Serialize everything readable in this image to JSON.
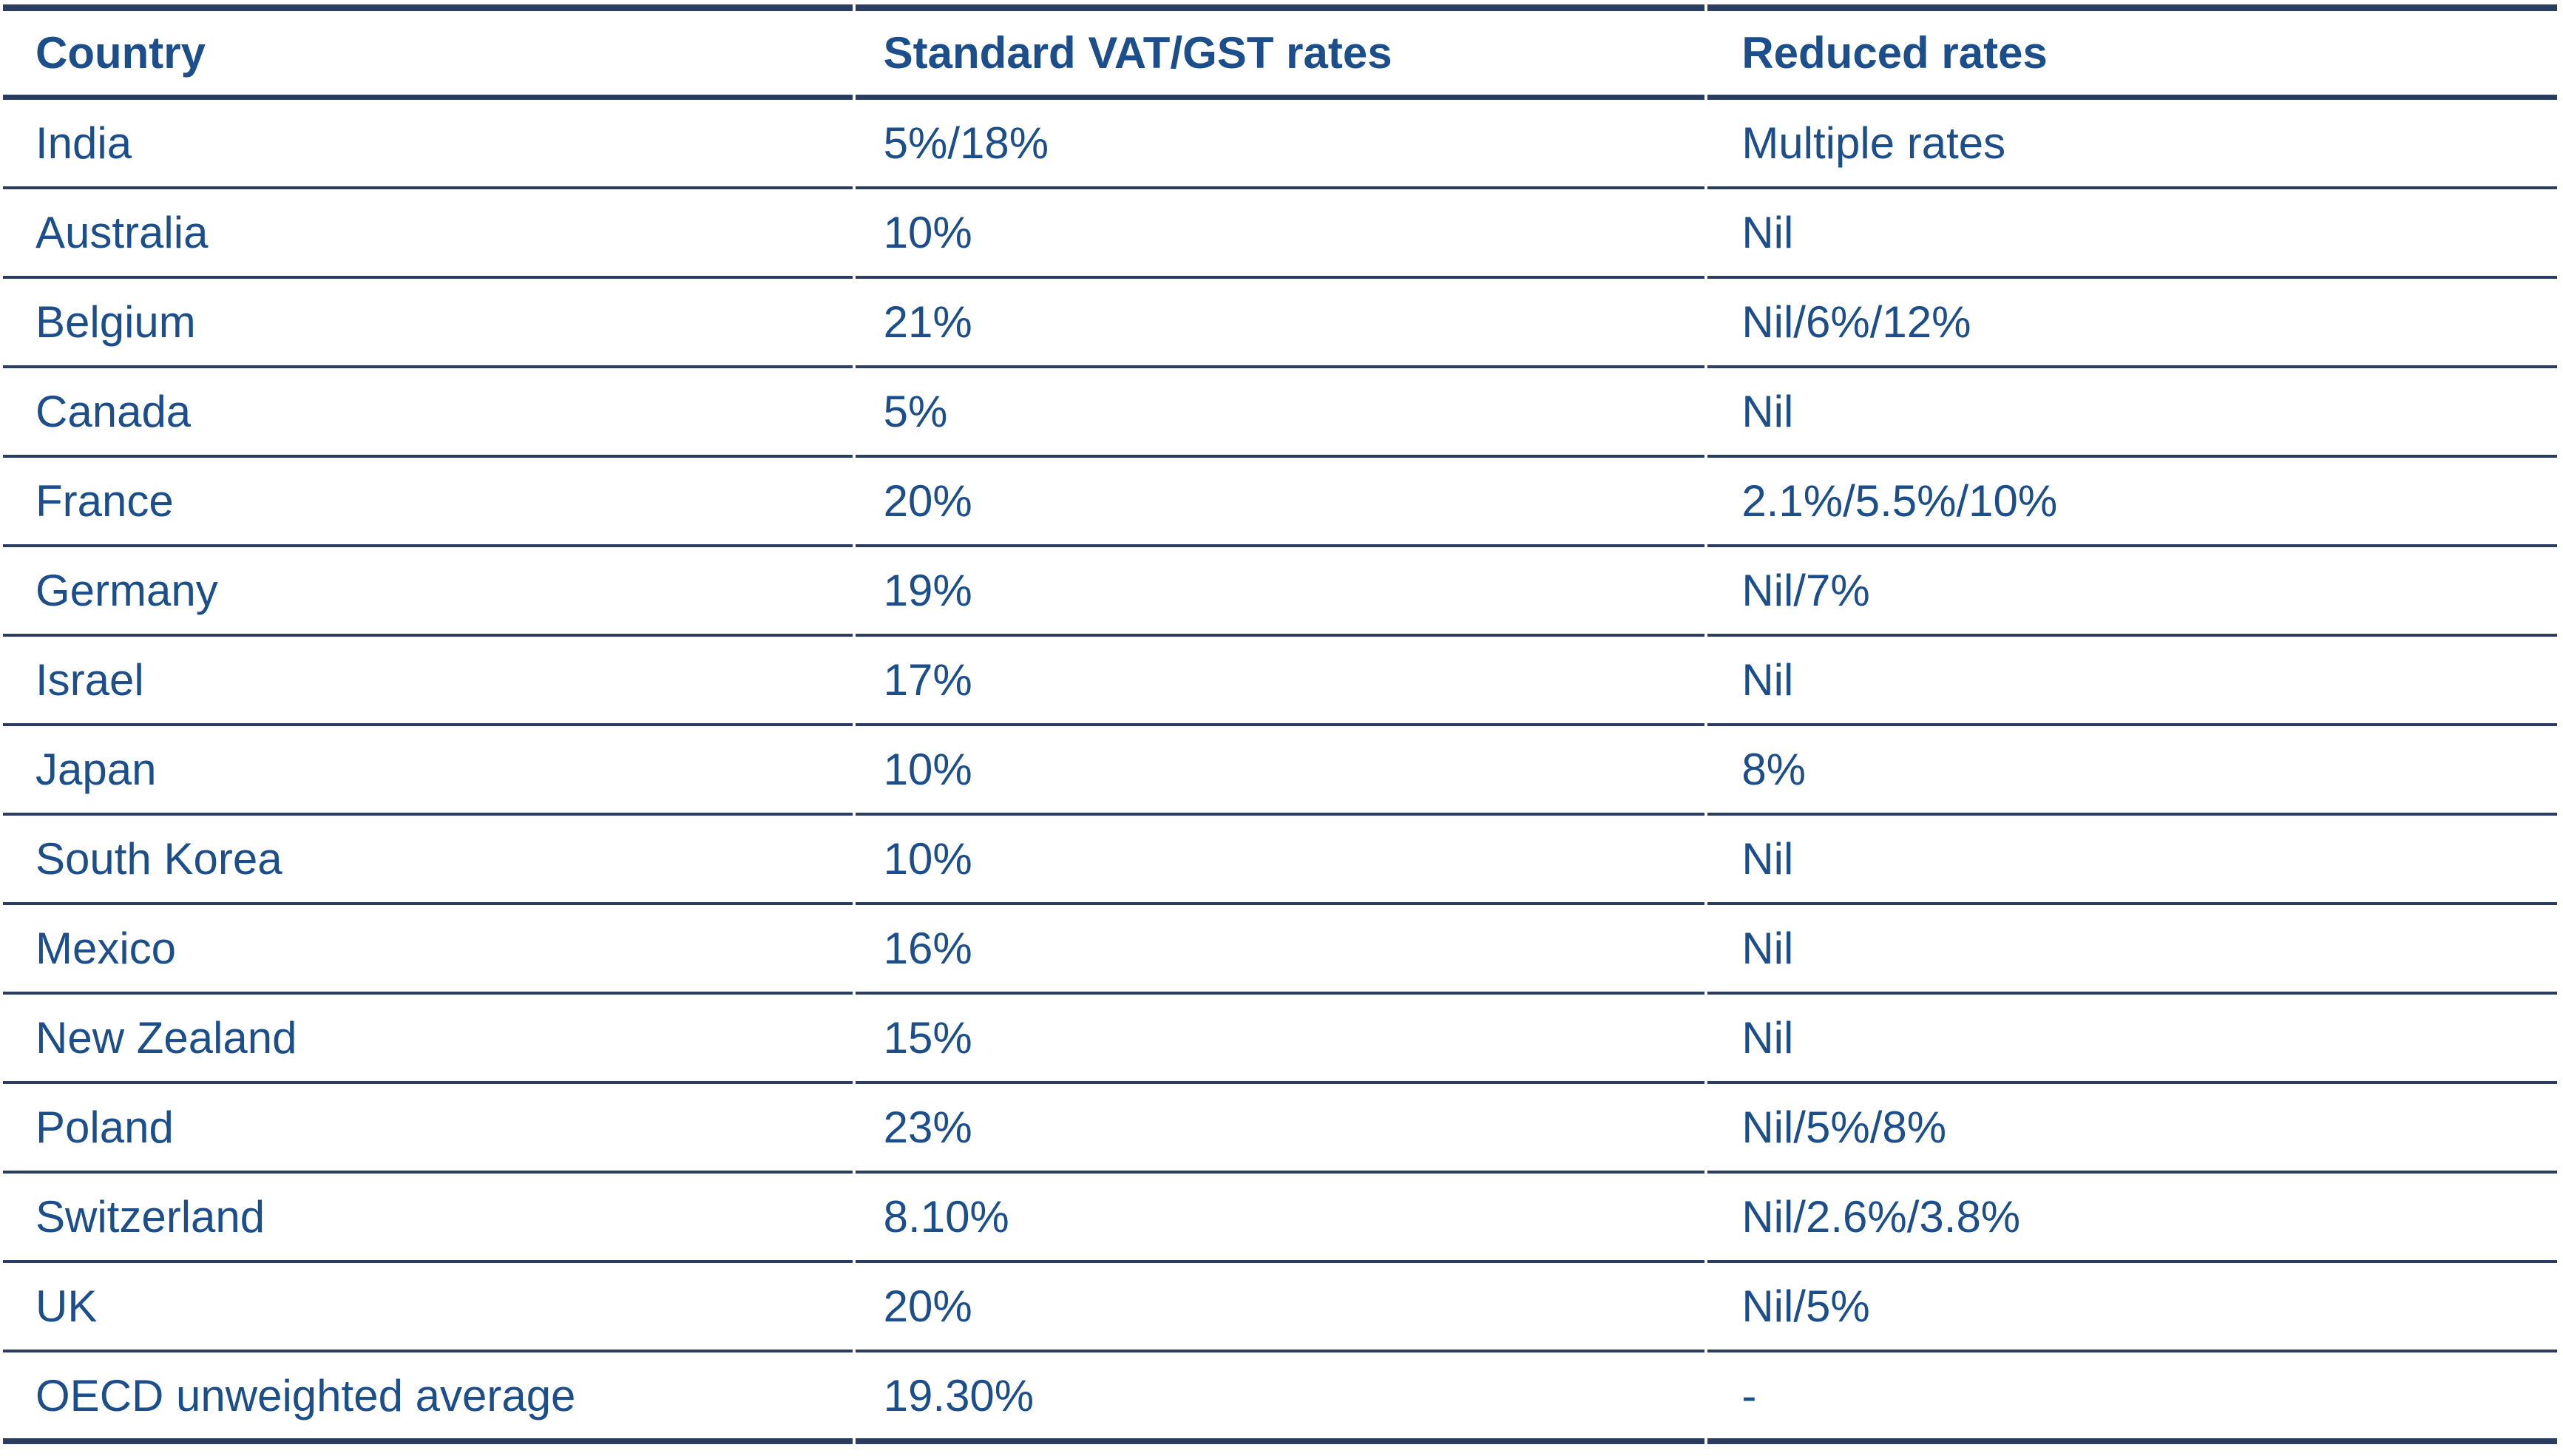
{
  "colors": {
    "text": "#1B4E8B",
    "border": "#2A3C60",
    "background": "#FFFFFF"
  },
  "table": {
    "columns": [
      "Country",
      "Standard VAT/GST rates",
      "Reduced rates"
    ],
    "rows": [
      {
        "country": "India",
        "standard": "5%/18%",
        "reduced": "Multiple rates"
      },
      {
        "country": "Australia",
        "standard": "10%",
        "reduced": "Nil"
      },
      {
        "country": "Belgium",
        "standard": "21%",
        "reduced": "Nil/6%/12%"
      },
      {
        "country": "Canada",
        "standard": "5%",
        "reduced": "Nil"
      },
      {
        "country": "France",
        "standard": "20%",
        "reduced": "2.1%/5.5%/10%"
      },
      {
        "country": "Germany",
        "standard": "19%",
        "reduced": "Nil/7%"
      },
      {
        "country": "Israel",
        "standard": "17%",
        "reduced": "Nil"
      },
      {
        "country": "Japan",
        "standard": "10%",
        "reduced": "8%"
      },
      {
        "country": "South Korea",
        "standard": "10%",
        "reduced": "Nil"
      },
      {
        "country": "Mexico",
        "standard": "16%",
        "reduced": "Nil"
      },
      {
        "country": "New Zealand",
        "standard": "15%",
        "reduced": "Nil"
      },
      {
        "country": "Poland",
        "standard": "23%",
        "reduced": "Nil/5%/8%"
      },
      {
        "country": "Switzerland",
        "standard": "8.10%",
        "reduced": "Nil/2.6%/3.8%"
      },
      {
        "country": "UK",
        "standard": "20%",
        "reduced": "Nil/5%"
      },
      {
        "country": "OECD unweighted average",
        "standard": "19.30%",
        "reduced": "-"
      }
    ]
  }
}
